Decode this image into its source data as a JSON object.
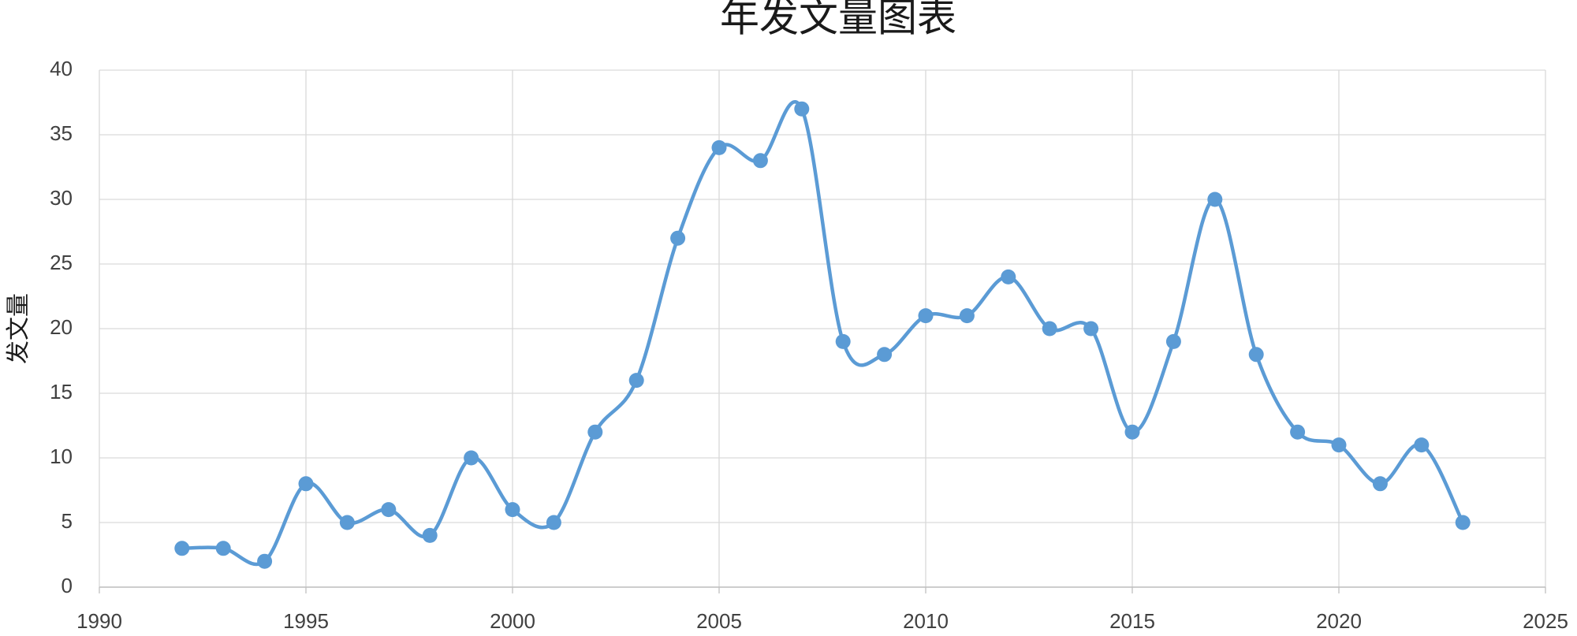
{
  "chart_data": {
    "type": "line",
    "title": "年发文量图表",
    "y_label": "发文量",
    "x": [
      1992,
      1993,
      1994,
      1995,
      1996,
      1997,
      1998,
      1999,
      2000,
      2001,
      2002,
      2003,
      2004,
      2005,
      2006,
      2007,
      2008,
      2009,
      2010,
      2011,
      2012,
      2013,
      2014,
      2015,
      2016,
      2017,
      2018,
      2019,
      2020,
      2021,
      2022,
      2023
    ],
    "values": [
      3,
      3,
      2,
      8,
      5,
      6,
      4,
      10,
      6,
      5,
      12,
      16,
      27,
      34,
      33,
      37,
      19,
      18,
      21,
      21,
      24,
      20,
      20,
      12,
      19,
      30,
      18,
      12,
      11,
      8,
      11,
      5
    ],
    "color": "#5b9bd5",
    "smooth": true,
    "markers": true,
    "xlim": [
      1990,
      2025
    ],
    "xticks": [
      1990,
      1995,
      2000,
      2005,
      2010,
      2015,
      2020,
      2025
    ],
    "ylim": [
      0,
      40
    ],
    "yticks": [
      0,
      5,
      10,
      15,
      20,
      25,
      30,
      35,
      40
    ],
    "grid": true
  }
}
